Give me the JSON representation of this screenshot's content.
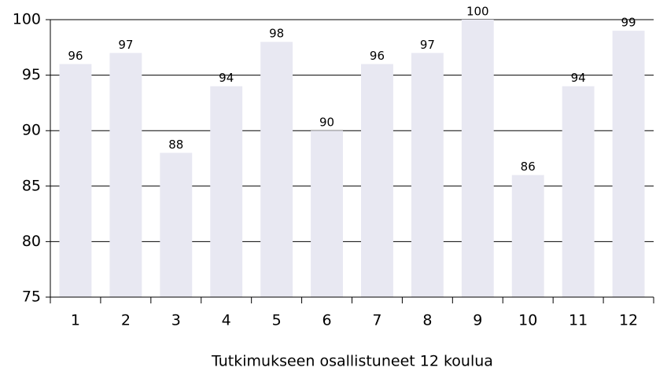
{
  "chart_data": {
    "type": "bar",
    "x_label": "Tutkimukseen osallistuneet 12 koulua",
    "categories": [
      "1",
      "2",
      "3",
      "4",
      "5",
      "6",
      "7",
      "8",
      "9",
      "10",
      "11",
      "12"
    ],
    "values": [
      96,
      97,
      88,
      94,
      98,
      90,
      96,
      97,
      100,
      86,
      94,
      99
    ],
    "color": "#e8e8f2",
    "ylim": [
      75,
      100
    ],
    "yticks": [
      75,
      80,
      85,
      90,
      95,
      100
    ],
    "grid": true
  }
}
